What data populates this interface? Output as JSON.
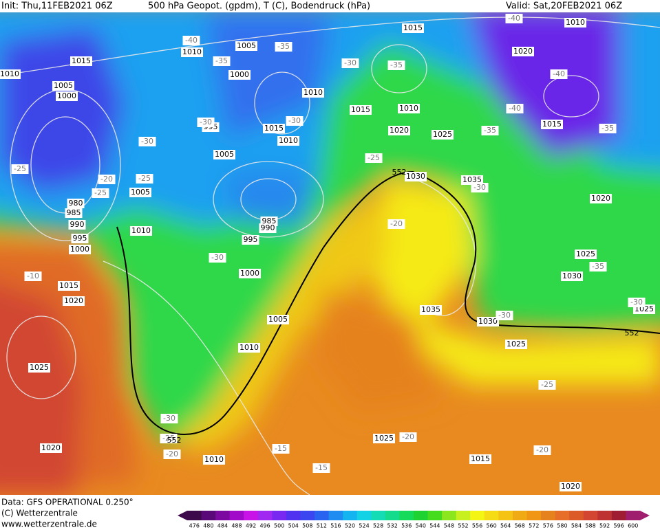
{
  "header": {
    "init": "Init: Thu,11FEB2021 06Z",
    "title": "500 hPa Geopot. (gpdm), T (C), Bodendruck (hPa)",
    "valid": "Valid: Sat,20FEB2021 06Z"
  },
  "footer": {
    "data": "Data: GFS OPERATIONAL 0.250°",
    "copyright": "(C) Wetterzentrale",
    "url": "www.wetterzentrale.de"
  },
  "pressure_labels": [
    "1015",
    "1010",
    "1010",
    "1005",
    "1020",
    "1015",
    "1010",
    "1005",
    "1000",
    "1000",
    "1010",
    "1015",
    "1010",
    "995",
    "1015",
    "1010",
    "1020",
    "1025",
    "1015",
    "1005",
    "1030",
    "1035",
    "1005",
    "980",
    "985",
    "990",
    "985",
    "990",
    "995",
    "995",
    "1000",
    "1010",
    "1020",
    "1025",
    "1000",
    "1030",
    "1015",
    "1020",
    "1035",
    "1030",
    "1025",
    "1005",
    "1010",
    "1025",
    "1025",
    "1025",
    "1020",
    "1010",
    "1015",
    "1020"
  ],
  "temperature_labels": [
    "-40",
    "-35",
    "-40",
    "-35",
    "-30",
    "-35",
    "-40",
    "-40",
    "-35",
    "-35",
    "-30",
    "-30",
    "-30",
    "-25",
    "-20",
    "-25",
    "-25",
    "-25",
    "-30",
    "-20",
    "-30",
    "-35",
    "-10",
    "-30",
    "-30",
    "-25",
    "-30",
    "-25",
    "-20",
    "-20",
    "-15",
    "-15",
    "-20"
  ],
  "contour_labels": [
    "552",
    "552",
    "552"
  ],
  "colorbar": {
    "labels": [
      476,
      480,
      484,
      488,
      492,
      496,
      500,
      504,
      508,
      512,
      516,
      520,
      524,
      528,
      532,
      536,
      540,
      544,
      548,
      552,
      556,
      560,
      564,
      568,
      572,
      576,
      580,
      584,
      588,
      592,
      596,
      600
    ],
    "colors": [
      "#3c0a4b",
      "#5a0a78",
      "#7d0aa0",
      "#a00ac8",
      "#c814e6",
      "#a028f0",
      "#7828f0",
      "#5032f0",
      "#3c46f0",
      "#2864f0",
      "#1e8cf0",
      "#14b4f0",
      "#14d2e6",
      "#14dcb4",
      "#14dc8c",
      "#14dc5a",
      "#1ed232",
      "#46dc1e",
      "#8ce61e",
      "#c8f01e",
      "#f5f514",
      "#f5dc14",
      "#f5c314",
      "#f0aa14",
      "#f09614",
      "#e6821e",
      "#e66e28",
      "#dc5a28",
      "#d24632",
      "#be3232",
      "#a01e32",
      "#a01e6e"
    ]
  }
}
